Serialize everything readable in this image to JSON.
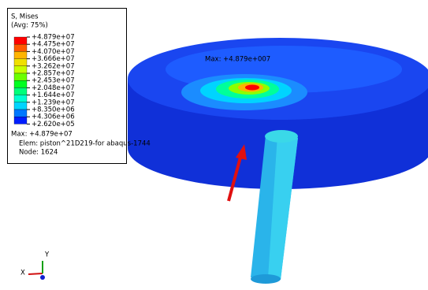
{
  "legend": {
    "title": "S, Mises",
    "subtitle": "(Avg: 75%)",
    "entries": [
      "+4.879e+07",
      "+4.475e+07",
      "+4.070e+07",
      "+3.666e+07",
      "+3.262e+07",
      "+2.857e+07",
      "+2.453e+07",
      "+2.048e+07",
      "+1.644e+07",
      "+1.239e+07",
      "+8.350e+06",
      "+4.306e+06",
      "+2.620e+05"
    ],
    "colors": [
      "#ff0000",
      "#ff5a00",
      "#ffb400",
      "#f0e000",
      "#c8ff00",
      "#6cff00",
      "#00ff20",
      "#00ff7a",
      "#00ffd0",
      "#00d4ff",
      "#0078ff",
      "#001eff"
    ],
    "max": "Max: +4.879e+07",
    "elem": "Elem: piston^21D219-for abaqus-1744",
    "node": "Node: 1624"
  },
  "annotation": "Max: +4.879e+007",
  "triad": {
    "x": "X",
    "y": "Y"
  }
}
